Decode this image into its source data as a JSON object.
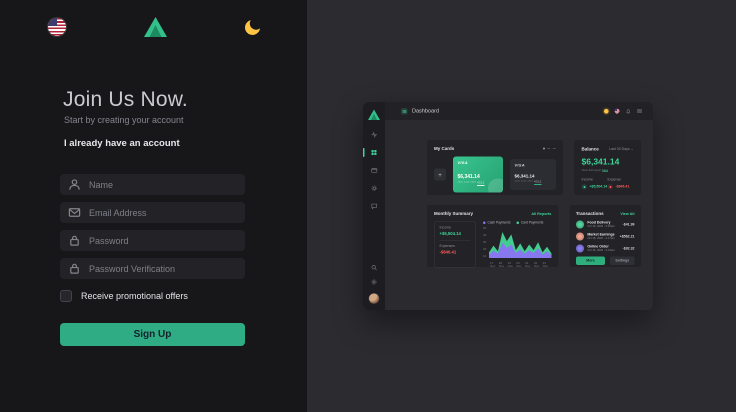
{
  "signup": {
    "title": "Join Us Now.",
    "subtitle": "Start by creating your account",
    "login_link": "I already have an account",
    "fields": [
      {
        "icon": "user",
        "placeholder": "Name"
      },
      {
        "icon": "mail",
        "placeholder": "Email Address"
      },
      {
        "icon": "lock",
        "placeholder": "Password"
      },
      {
        "icon": "lock",
        "placeholder": "Password Verification"
      }
    ],
    "promo_label": "Receive promotional offers",
    "submit_label": "Sign Up"
  },
  "preview": {
    "topbar": {
      "title": "Dashboard"
    },
    "my_cards": {
      "title": "My Cards",
      "add_label": "+",
      "cards": [
        {
          "brand": "VISA",
          "amount": "$6,341.14",
          "number_prefix": "**** **** ****",
          "number_last": "4312",
          "style": "green"
        },
        {
          "brand": "VISA",
          "amount": "$6,341.14",
          "number_prefix": "**** **** ****",
          "number_last": "4312",
          "style": "dark"
        }
      ]
    },
    "balance": {
      "title": "Balance",
      "range": "Last 30 Days ⌄",
      "amount": "$6,341.14",
      "note": "View full report ",
      "note_link": "here",
      "income_label": "Income",
      "income_value": "+$5,504.14",
      "expense_label": "Expense",
      "expense_value": "-$846.41"
    },
    "monthly_summary": {
      "title": "Monthly Summary",
      "link": "All Reports",
      "income_label": "Income",
      "income_value": "+$5,504.14",
      "expenses_label": "Expenses",
      "expenses_value": "-$846.41"
    },
    "transactions": {
      "title": "Transactions",
      "link": "View All",
      "items": [
        {
          "name": "Food Delivery",
          "date": "Oct 19, 2020 - 3:45pm",
          "amount": "-$41.99",
          "color": "#52d49b"
        },
        {
          "name": "Market Earnings",
          "date": "Oct 18, 2020 - 4:17pm",
          "amount": "+$562.21",
          "color": "#f0a58f"
        },
        {
          "name": "Online Order",
          "date": "Oct 16, 2020 - 4:13pm",
          "amount": "-$92.32",
          "color": "#8a7ff0"
        }
      ],
      "primary_button": "More",
      "secondary_button": "Settings"
    }
  },
  "chart_data": {
    "type": "area",
    "title": "Monthly Summary",
    "x_labels": [
      "17 Nov",
      "18 Nov",
      "19 Nov",
      "20 Nov",
      "21 Nov",
      "22 Nov",
      "23 Nov"
    ],
    "yticks": [
      50,
      40,
      30,
      20,
      10
    ],
    "ylim": [
      0,
      55
    ],
    "grid": false,
    "legend_position": "top",
    "series": [
      {
        "name": "Card Payments",
        "color": "#45d695",
        "values": [
          10,
          22,
          12,
          46,
          30,
          42,
          14,
          26,
          12,
          24,
          14,
          28,
          10,
          20,
          8
        ]
      },
      {
        "name": "Cash Payments",
        "color": "#8878f0",
        "values": [
          6,
          13,
          8,
          27,
          18,
          24,
          9,
          15,
          8,
          14,
          9,
          17,
          6,
          12,
          5
        ]
      }
    ]
  },
  "colors": {
    "accent_green": "#2fae7d",
    "bright_green": "#3ed598",
    "red": "#fc5a5a",
    "purple": "#8878f0",
    "moon_yellow": "#ffc542"
  }
}
